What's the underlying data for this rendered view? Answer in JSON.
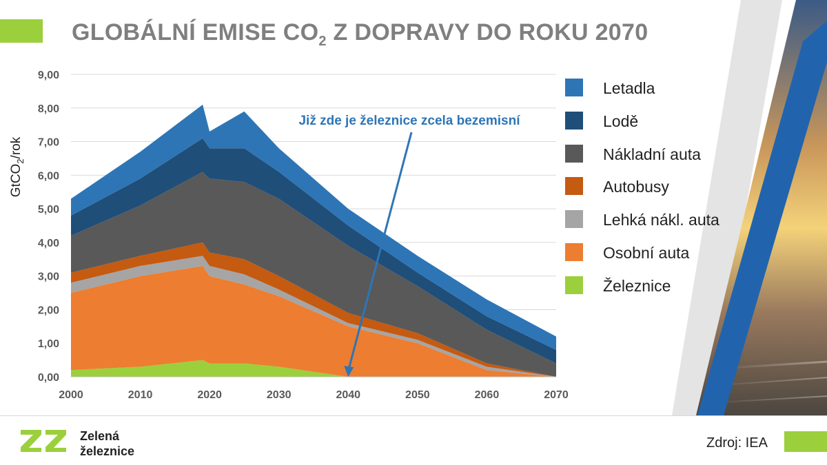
{
  "slide": {
    "title_main": "GLOBÁLNÍ EMISE CO",
    "title_sub": "2",
    "title_end": " Z DOPRAVY DO ROKU 2070",
    "source": "Zdroj: IEA",
    "logo": {
      "mark": "ZZ",
      "line1": "Zelená",
      "line2": "železnice"
    },
    "colors": {
      "accent": "#9ccf3c",
      "title": "#7f7f7f"
    }
  },
  "chart_data": {
    "type": "area",
    "stacked": true,
    "ylabel_main": "GtCO",
    "ylabel_sub": "2",
    "ylabel_end": "/rok",
    "xlabel": "",
    "xlim": [
      2000,
      2070
    ],
    "ylim": [
      0,
      9
    ],
    "x_ticks": [
      2000,
      2010,
      2020,
      2030,
      2040,
      2050,
      2060,
      2070
    ],
    "y_ticks": [
      "0,00",
      "1,00",
      "2,00",
      "3,00",
      "4,00",
      "5,00",
      "6,00",
      "7,00",
      "8,00",
      "9,00"
    ],
    "grid": true,
    "legend_position": "right",
    "x": [
      2000,
      2010,
      2019,
      2020,
      2025,
      2030,
      2040,
      2050,
      2060,
      2070
    ],
    "series": [
      {
        "name": "Železnice",
        "color": "#9ccf3c",
        "values": [
          0.2,
          0.3,
          0.5,
          0.4,
          0.4,
          0.3,
          0.0,
          0.0,
          0.0,
          0.0
        ]
      },
      {
        "name": "Osobní auta",
        "color": "#ed7d31",
        "values": [
          2.3,
          2.7,
          2.8,
          2.6,
          2.35,
          2.1,
          1.5,
          1.0,
          0.2,
          0.0
        ]
      },
      {
        "name": "Lehká nákl. auta",
        "color": "#a5a5a5",
        "values": [
          0.3,
          0.3,
          0.3,
          0.3,
          0.3,
          0.2,
          0.1,
          0.1,
          0.1,
          0.0
        ]
      },
      {
        "name": "Autobusy",
        "color": "#c55a11",
        "values": [
          0.3,
          0.3,
          0.4,
          0.4,
          0.45,
          0.4,
          0.3,
          0.2,
          0.1,
          0.0
        ]
      },
      {
        "name": "Nákladní auta",
        "color": "#595959",
        "values": [
          1.1,
          1.5,
          2.1,
          2.2,
          2.3,
          2.3,
          2.0,
          1.4,
          1.0,
          0.4
        ]
      },
      {
        "name": "Lodě",
        "color": "#1f4e79",
        "values": [
          0.6,
          0.8,
          1.0,
          0.9,
          1.0,
          0.8,
          0.6,
          0.4,
          0.4,
          0.4
        ]
      },
      {
        "name": "Letadla",
        "color": "#2e75b6",
        "values": [
          0.5,
          0.8,
          1.0,
          0.5,
          1.1,
          0.7,
          0.5,
          0.5,
          0.5,
          0.4
        ]
      }
    ],
    "annotation": {
      "text": "Již zde je železnice zcela bezemisní",
      "target_x": 2040,
      "target_y": 0,
      "color": "#2e75b6"
    }
  }
}
